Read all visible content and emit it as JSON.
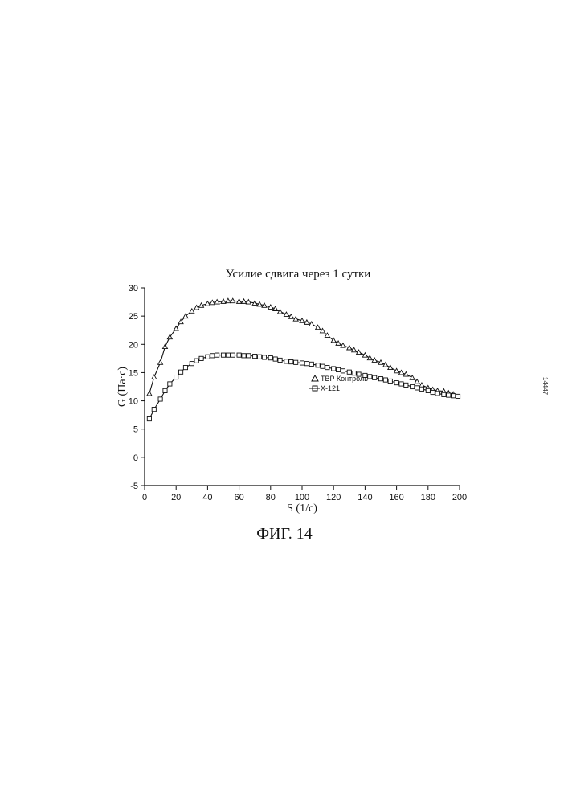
{
  "chart_data": {
    "type": "line",
    "title": "Усилие сдвига через 1 сутки",
    "xlabel": "S (1/с)",
    "ylabel": "G (Па·с)",
    "xlim": [
      0,
      200
    ],
    "ylim": [
      -5,
      30
    ],
    "xticks": [
      "0",
      "20",
      "40",
      "60",
      "80",
      "100",
      "120",
      "140",
      "160",
      "180",
      "200"
    ],
    "yticks": [
      "-5",
      "0",
      "5",
      "10",
      "15",
      "20",
      "25",
      "30"
    ],
    "grid": false,
    "legend_position": "right",
    "series": [
      {
        "name": "TBP Контроль",
        "marker": "triangle",
        "x": [
          3,
          6,
          10,
          13,
          16,
          20,
          23,
          26,
          30,
          33,
          36,
          40,
          43,
          46,
          50,
          53,
          56,
          60,
          63,
          66,
          70,
          73,
          76,
          80,
          83,
          86,
          90,
          93,
          96,
          100,
          103,
          106,
          110,
          113,
          116,
          120,
          123,
          126,
          130,
          133,
          136,
          140,
          143,
          146,
          150,
          153,
          156,
          160,
          163,
          166,
          170,
          173,
          176,
          180,
          183,
          186,
          190,
          193,
          196
        ],
        "values": [
          11.3,
          14.2,
          16.8,
          19.6,
          21.3,
          22.8,
          24.0,
          25.0,
          25.9,
          26.5,
          26.9,
          27.2,
          27.4,
          27.5,
          27.6,
          27.7,
          27.7,
          27.6,
          27.6,
          27.5,
          27.3,
          27.1,
          26.9,
          26.6,
          26.3,
          25.8,
          25.3,
          24.9,
          24.5,
          24.2,
          23.9,
          23.6,
          23.0,
          22.4,
          21.6,
          20.7,
          20.2,
          19.8,
          19.4,
          19.0,
          18.6,
          18.1,
          17.6,
          17.2,
          16.8,
          16.4,
          15.9,
          15.3,
          15.0,
          14.7,
          14.1,
          13.4,
          12.8,
          12.3,
          12.0,
          11.8,
          11.7,
          11.4,
          11.2
        ]
      },
      {
        "name": "X-121",
        "marker": "square",
        "x": [
          3,
          6,
          10,
          13,
          16,
          20,
          23,
          26,
          30,
          33,
          36,
          40,
          43,
          46,
          50,
          53,
          56,
          60,
          63,
          66,
          70,
          73,
          76,
          80,
          83,
          86,
          90,
          93,
          96,
          100,
          103,
          106,
          110,
          113,
          116,
          120,
          123,
          126,
          130,
          133,
          136,
          140,
          143,
          146,
          150,
          153,
          156,
          160,
          163,
          166,
          170,
          173,
          176,
          180,
          183,
          186,
          190,
          193,
          196,
          199
        ],
        "values": [
          6.8,
          8.5,
          10.3,
          11.8,
          13.0,
          14.2,
          15.1,
          15.9,
          16.6,
          17.1,
          17.5,
          17.8,
          18.0,
          18.1,
          18.1,
          18.1,
          18.1,
          18.1,
          18.0,
          18.0,
          17.9,
          17.8,
          17.7,
          17.6,
          17.4,
          17.2,
          17.0,
          16.9,
          16.8,
          16.7,
          16.6,
          16.5,
          16.3,
          16.1,
          15.9,
          15.7,
          15.5,
          15.3,
          15.1,
          14.9,
          14.7,
          14.5,
          14.3,
          14.1,
          13.9,
          13.7,
          13.5,
          13.2,
          13.0,
          12.8,
          12.5,
          12.3,
          12.1,
          11.8,
          11.5,
          11.3,
          11.1,
          11.0,
          10.9,
          10.8
        ]
      }
    ]
  },
  "caption": "ФИГ. 14",
  "page_note": "14447"
}
